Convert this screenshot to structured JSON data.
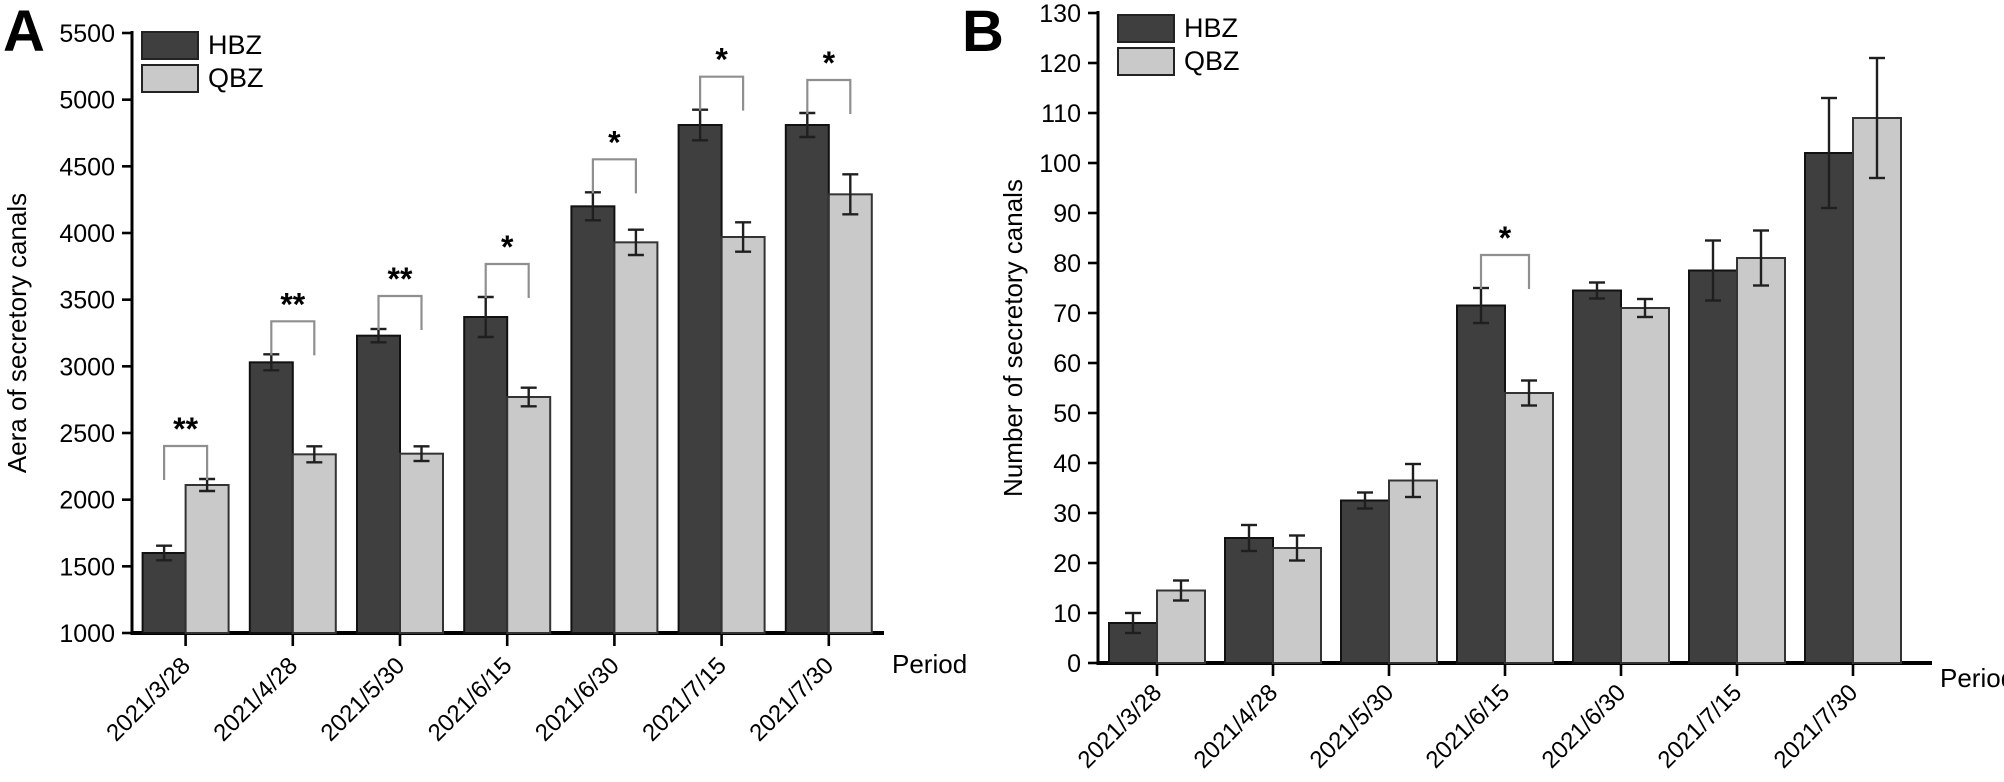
{
  "figure_background": "#ffffff",
  "colors": {
    "hbz_fill": "#3f3f3f",
    "hbz_border": "#111111",
    "qbz_fill": "#c9c9c9",
    "qbz_border": "#333333",
    "axis": "#000000",
    "error_bar": "#1f1f1f",
    "sig_bracket": "#8f8f8f",
    "text": "#000000"
  },
  "chart_data": [
    {
      "type": "bar",
      "panel_letter": "A",
      "title": "",
      "xlabel": "Period",
      "ylabel": "Aera of secretory canals",
      "categories": [
        "2021/3/28",
        "2021/4/28",
        "2021/5/30",
        "2021/6/15",
        "2021/6/30",
        "2021/7/15",
        "2021/7/30"
      ],
      "series": [
        {
          "name": "HBZ",
          "values": [
            1600,
            3030,
            3230,
            3370,
            4200,
            4810,
            4810
          ],
          "errors": [
            55,
            60,
            50,
            150,
            105,
            115,
            90
          ],
          "color": "#3f3f3f",
          "border": "#111111"
        },
        {
          "name": "QBZ",
          "values": [
            2110,
            2340,
            2345,
            2770,
            3930,
            3970,
            4290
          ],
          "errors": [
            45,
            60,
            55,
            70,
            95,
            110,
            150
          ],
          "color": "#c9c9c9",
          "border": "#333333"
        }
      ],
      "significance": [
        "**",
        "**",
        "**",
        "*",
        "*",
        "*",
        "*"
      ],
      "ylim": [
        1000,
        5500
      ],
      "ytick_step": 500,
      "grid": false,
      "legend_position": "top-left",
      "error_bars": true
    },
    {
      "type": "bar",
      "panel_letter": "B",
      "title": "",
      "xlabel": "Period",
      "ylabel": "Number of secretory canals",
      "categories": [
        "2021/3/28",
        "2021/4/28",
        "2021/5/30",
        "2021/6/15",
        "2021/6/30",
        "2021/7/15",
        "2021/7/30"
      ],
      "series": [
        {
          "name": "HBZ",
          "values": [
            8,
            25,
            32.5,
            71.5,
            74.5,
            78.5,
            102
          ],
          "errors": [
            2,
            2.6,
            1.6,
            3.5,
            1.6,
            6,
            11
          ],
          "color": "#3f3f3f",
          "border": "#111111"
        },
        {
          "name": "QBZ",
          "values": [
            14.5,
            23,
            36.5,
            54,
            71,
            81,
            109
          ],
          "errors": [
            2,
            2.5,
            3.3,
            2.5,
            1.8,
            5.5,
            12
          ],
          "color": "#c9c9c9",
          "border": "#333333"
        }
      ],
      "significance": [
        null,
        null,
        null,
        "*",
        null,
        null,
        null
      ],
      "ylim": [
        0,
        130
      ],
      "ytick_step": 10,
      "grid": false,
      "legend_position": "top-left",
      "error_bars": true
    }
  ]
}
